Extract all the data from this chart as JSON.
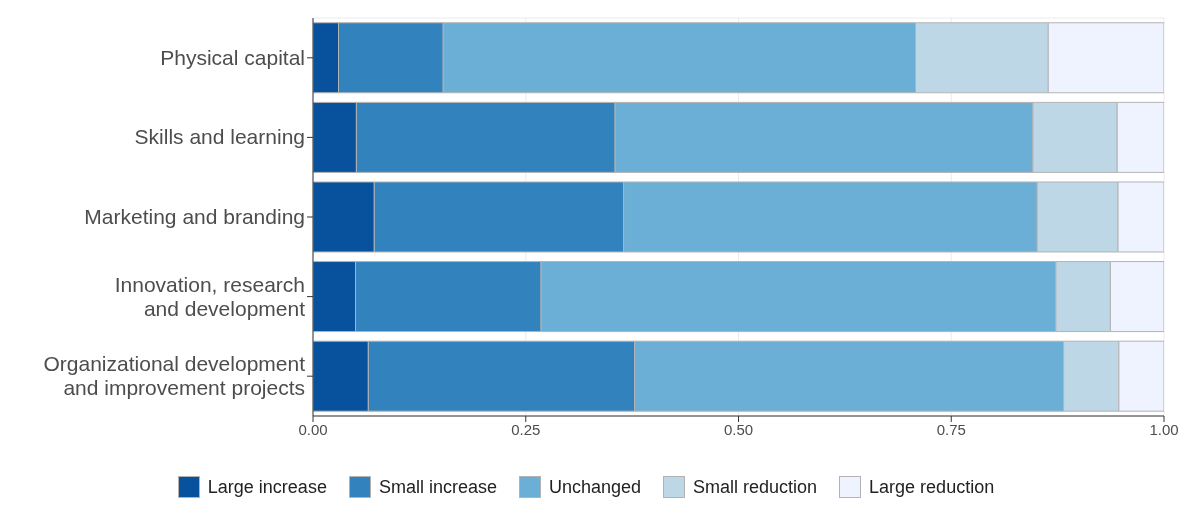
{
  "chart_data": {
    "type": "bar",
    "orientation": "horizontal",
    "stacked": true,
    "categories": [
      "Physical capital",
      "Skills and learning",
      "Marketing and branding",
      "Innovation, research\nand development",
      "Organizational development\nand improvement projects"
    ],
    "series": [
      {
        "name": "Large increase",
        "color": "#08519c",
        "values": [
          0.03,
          0.051,
          0.072,
          0.05,
          0.065
        ]
      },
      {
        "name": "Small increase",
        "color": "#3182bd",
        "values": [
          0.123,
          0.304,
          0.293,
          0.218,
          0.313
        ]
      },
      {
        "name": "Unchanged",
        "color": "#6baed6",
        "values": [
          0.555,
          0.491,
          0.486,
          0.605,
          0.504
        ]
      },
      {
        "name": "Small reduction",
        "color": "#bdd7e7",
        "values": [
          0.156,
          0.099,
          0.095,
          0.064,
          0.065
        ]
      },
      {
        "name": "Large reduction",
        "color": "#eff3ff",
        "values": [
          0.136,
          0.055,
          0.054,
          0.063,
          0.053
        ]
      }
    ],
    "xlim": [
      0,
      1
    ],
    "xticks": [
      {
        "value": 0,
        "label": "0.00"
      },
      {
        "value": 0.25,
        "label": "0.25"
      },
      {
        "value": 0.5,
        "label": "0.50"
      },
      {
        "value": 0.75,
        "label": "0.75"
      },
      {
        "value": 1,
        "label": "1.00"
      }
    ],
    "grid": true,
    "legend": "bottom"
  }
}
